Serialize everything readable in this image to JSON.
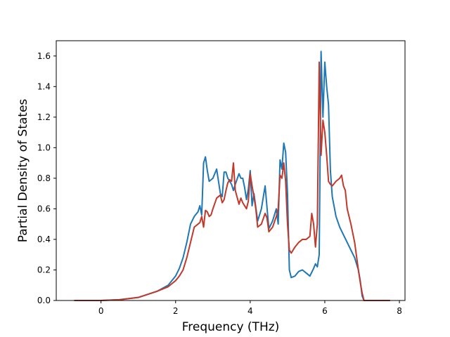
{
  "chart_data": {
    "type": "line",
    "title": "",
    "xlabel": "Frequency (THz)",
    "ylabel": "Partial Density of States",
    "xlim": [
      -1.2,
      8.15
    ],
    "ylim": [
      0.0,
      1.7
    ],
    "xticks": [
      0,
      2,
      4,
      6,
      8
    ],
    "yticks": [
      0.0,
      0.2,
      0.4,
      0.6,
      0.8,
      1.0,
      1.2,
      1.4,
      1.6
    ],
    "xtick_labels": [
      "0",
      "2",
      "4",
      "6",
      "8"
    ],
    "ytick_labels": [
      "0.0",
      "0.2",
      "0.4",
      "0.6",
      "0.8",
      "1.0",
      "1.2",
      "1.4",
      "1.6"
    ],
    "grid": false,
    "legend": "none",
    "series": [
      {
        "color": "#1f77b4",
        "x": [
          -0.72,
          0.0,
          0.5,
          1.0,
          1.5,
          1.8,
          2.0,
          2.1,
          2.2,
          2.3,
          2.4,
          2.5,
          2.6,
          2.65,
          2.7,
          2.75,
          2.8,
          2.85,
          2.9,
          3.0,
          3.1,
          3.2,
          3.25,
          3.3,
          3.35,
          3.4,
          3.5,
          3.55,
          3.6,
          3.7,
          3.75,
          3.8,
          3.85,
          3.9,
          3.95,
          4.0,
          4.05,
          4.1,
          4.2,
          4.3,
          4.4,
          4.5,
          4.6,
          4.7,
          4.75,
          4.8,
          4.85,
          4.9,
          4.95,
          5.0,
          5.05,
          5.1,
          5.2,
          5.3,
          5.4,
          5.5,
          5.6,
          5.7,
          5.75,
          5.8,
          5.85,
          5.9,
          5.95,
          6.0,
          6.05,
          6.1,
          6.15,
          6.2,
          6.3,
          6.4,
          6.5,
          6.6,
          6.7,
          6.8,
          6.9,
          6.95,
          7.0,
          7.05,
          7.7
        ],
        "y": [
          0.0,
          0.0,
          0.005,
          0.02,
          0.06,
          0.1,
          0.16,
          0.21,
          0.28,
          0.38,
          0.5,
          0.55,
          0.58,
          0.62,
          0.56,
          0.9,
          0.94,
          0.85,
          0.78,
          0.8,
          0.86,
          0.7,
          0.68,
          0.84,
          0.84,
          0.8,
          0.76,
          0.72,
          0.76,
          0.83,
          0.8,
          0.8,
          0.74,
          0.66,
          0.73,
          0.85,
          0.62,
          0.7,
          0.52,
          0.6,
          0.75,
          0.47,
          0.52,
          0.6,
          0.5,
          0.92,
          0.86,
          1.03,
          0.97,
          0.7,
          0.2,
          0.15,
          0.16,
          0.19,
          0.2,
          0.18,
          0.16,
          0.21,
          0.24,
          0.22,
          0.3,
          1.63,
          1.2,
          1.56,
          1.4,
          1.28,
          0.85,
          0.68,
          0.55,
          0.48,
          0.43,
          0.38,
          0.33,
          0.28,
          0.2,
          0.13,
          0.03,
          0.0,
          0.0
        ]
      },
      {
        "color": "#c0392b",
        "x": [
          -0.72,
          0.0,
          0.5,
          1.0,
          1.5,
          1.8,
          2.0,
          2.1,
          2.2,
          2.3,
          2.4,
          2.5,
          2.6,
          2.65,
          2.7,
          2.75,
          2.8,
          2.85,
          2.9,
          2.95,
          3.0,
          3.1,
          3.2,
          3.25,
          3.3,
          3.35,
          3.4,
          3.45,
          3.5,
          3.55,
          3.6,
          3.7,
          3.75,
          3.8,
          3.85,
          3.9,
          3.95,
          4.0,
          4.05,
          4.1,
          4.15,
          4.2,
          4.3,
          4.4,
          4.45,
          4.5,
          4.6,
          4.7,
          4.75,
          4.8,
          4.85,
          4.9,
          4.95,
          5.0,
          5.05,
          5.1,
          5.2,
          5.3,
          5.4,
          5.5,
          5.6,
          5.65,
          5.7,
          5.75,
          5.8,
          5.85,
          5.9,
          5.95,
          6.0,
          6.05,
          6.1,
          6.15,
          6.2,
          6.3,
          6.4,
          6.45,
          6.5,
          6.55,
          6.6,
          6.7,
          6.8,
          6.9,
          6.95,
          7.0,
          7.05,
          7.75
        ],
        "y": [
          0.0,
          0.0,
          0.005,
          0.02,
          0.06,
          0.09,
          0.13,
          0.16,
          0.2,
          0.28,
          0.38,
          0.48,
          0.5,
          0.51,
          0.55,
          0.48,
          0.59,
          0.58,
          0.55,
          0.56,
          0.6,
          0.67,
          0.69,
          0.64,
          0.66,
          0.72,
          0.77,
          0.79,
          0.78,
          0.9,
          0.72,
          0.63,
          0.67,
          0.64,
          0.62,
          0.6,
          0.65,
          0.83,
          0.75,
          0.68,
          0.6,
          0.48,
          0.5,
          0.57,
          0.54,
          0.45,
          0.48,
          0.55,
          0.6,
          0.82,
          0.8,
          0.9,
          0.78,
          0.5,
          0.33,
          0.31,
          0.35,
          0.38,
          0.4,
          0.4,
          0.42,
          0.57,
          0.5,
          0.35,
          0.5,
          1.56,
          0.95,
          1.18,
          1.1,
          0.95,
          0.78,
          0.76,
          0.75,
          0.78,
          0.8,
          0.82,
          0.75,
          0.72,
          0.6,
          0.5,
          0.38,
          0.2,
          0.12,
          0.05,
          0.0,
          0.0
        ]
      }
    ]
  }
}
